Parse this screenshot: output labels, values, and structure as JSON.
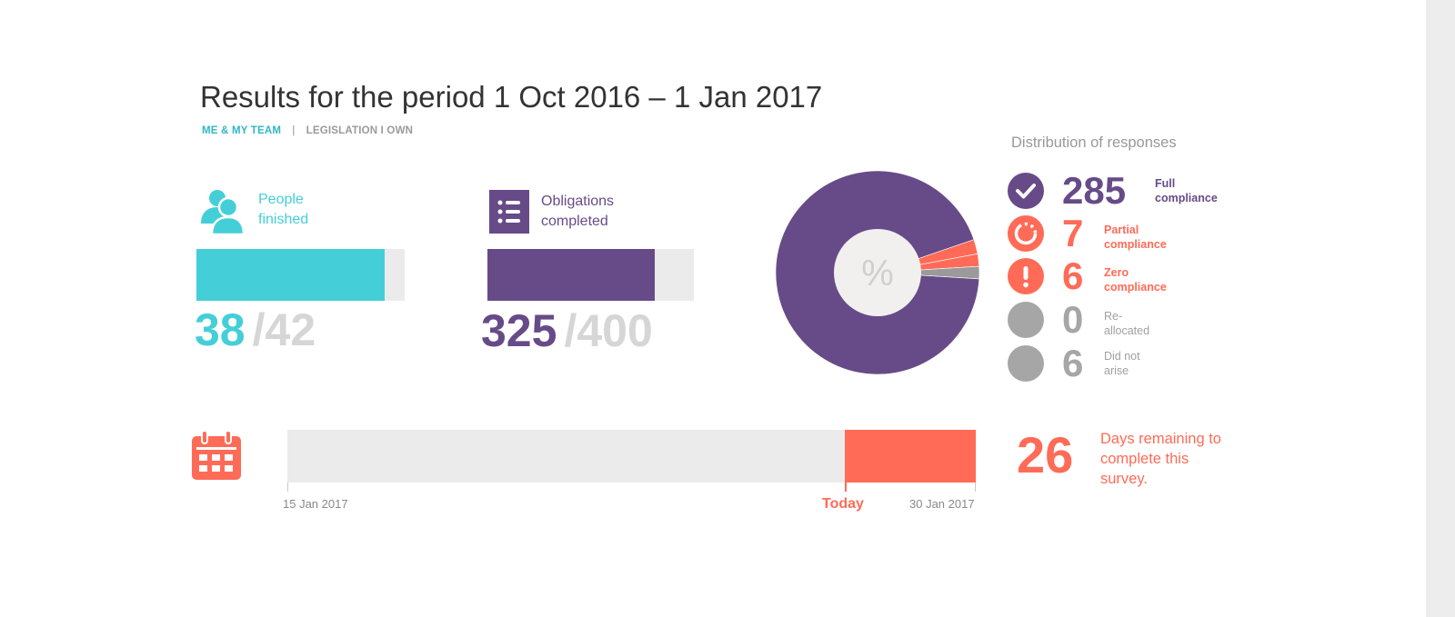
{
  "page": {
    "title": "Results for the period 1 Oct 2016 – 1 Jan 2017",
    "tabs": [
      {
        "label": "ME & MY TEAM",
        "active": true
      },
      {
        "label": "LEGISLATION I OWN",
        "active": false
      }
    ],
    "tab_separator": "|"
  },
  "people": {
    "label_line1": "People",
    "label_line2": "finished",
    "done": "38",
    "total": "/42",
    "progress_fraction": 0.905,
    "color": "#44cfd8",
    "icon": "people-icon"
  },
  "obligations": {
    "label_line1": "Obligations",
    "label_line2": "completed",
    "done": "325",
    "total": "/400",
    "progress_fraction": 0.8125,
    "color": "#674b88",
    "icon": "checklist-icon"
  },
  "chart_data": {
    "type": "pie",
    "center_label": "%",
    "title": "Distribution of responses",
    "slices": [
      {
        "name": "Full compliance",
        "value": 285,
        "color": "#674b88"
      },
      {
        "name": "Partial compliance",
        "value": 7,
        "color": "#ff6b57"
      },
      {
        "name": "Zero compliance",
        "value": 6,
        "color": "#ff6b57"
      },
      {
        "name": "Re-allocated",
        "value": 0,
        "color": "#a6a6a6"
      },
      {
        "name": "Did not arise",
        "value": 6,
        "color": "#a6a6a6"
      }
    ]
  },
  "distribution": {
    "title": "Distribution of responses",
    "items": [
      {
        "count": "285",
        "line1": "Full",
        "line2": "compliance",
        "color": "#674b88",
        "icon": "check-circle-icon"
      },
      {
        "count": "7",
        "line1": "Partial",
        "line2": "compliance",
        "color": "#ff6b57",
        "icon": "partial-circle-icon"
      },
      {
        "count": "6",
        "line1": "Zero",
        "line2": "compliance",
        "color": "#ff6b57",
        "icon": "exclamation-icon"
      },
      {
        "count": "0",
        "line1": "Re-",
        "line2": "allocated",
        "color": "#a6a6a6",
        "icon": "grey-dot-icon"
      },
      {
        "count": "6",
        "line1": "Did not",
        "line2": "arise",
        "color": "#a6a6a6",
        "icon": "grey-dot-icon"
      }
    ]
  },
  "timeline": {
    "start_label": "15 Jan 2017",
    "end_label": "30 Jan 2017",
    "today_label": "Today",
    "elapsed_fraction": 0.81,
    "icon": "calendar-icon"
  },
  "days_remaining": {
    "value": "26",
    "text": "Days remaining to complete this survey."
  },
  "colors": {
    "teal": "#44cfd8",
    "purple": "#674b88",
    "coral": "#ff6b57",
    "grey": "#a6a6a6"
  }
}
